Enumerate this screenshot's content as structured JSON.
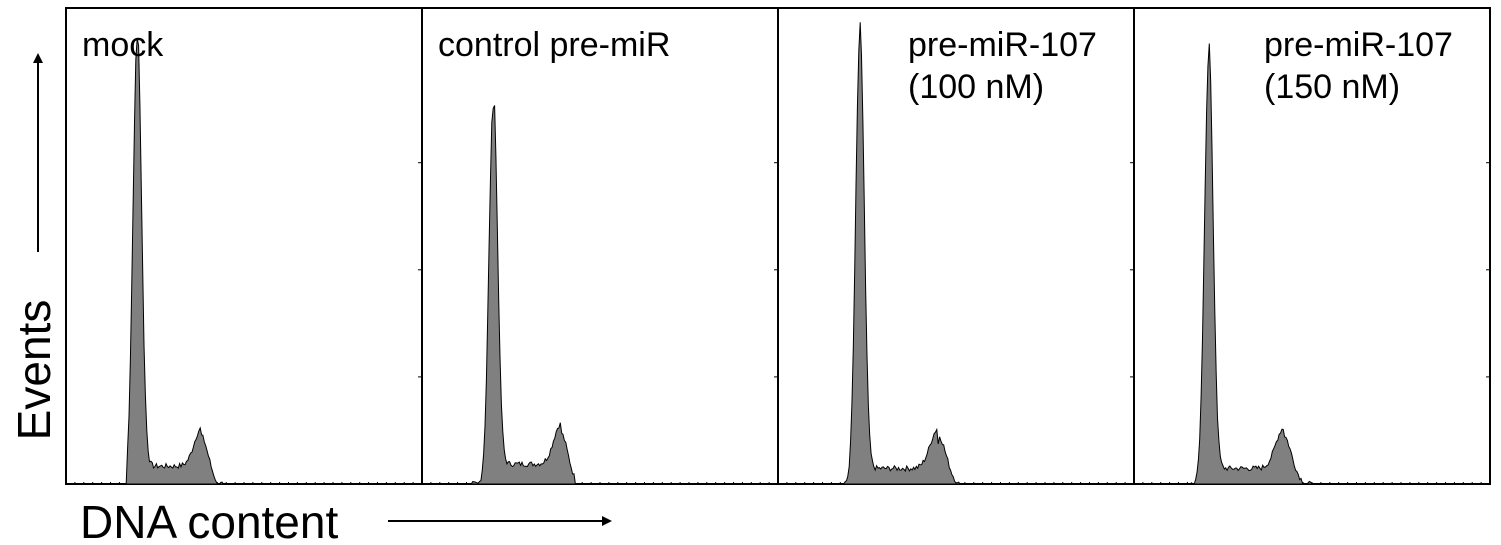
{
  "chart_data": {
    "type": "area",
    "ylabel": "Events",
    "xlabel": "DNA content",
    "panels": [
      {
        "label": [
          "mock"
        ],
        "series": {
          "g1_peak": {
            "x": 0.2,
            "y": 1.0,
            "width": 0.012
          },
          "g2_peak": {
            "x": 0.38,
            "y": 0.085,
            "width": 0.02
          },
          "s_phase_level": 0.04,
          "x_range": [
            0.17,
            0.42
          ]
        }
      },
      {
        "label": [
          "control pre-miR"
        ],
        "series": {
          "g1_peak": {
            "x": 0.2,
            "y": 0.85,
            "width": 0.012
          },
          "g2_peak": {
            "x": 0.39,
            "y": 0.09,
            "width": 0.02
          },
          "s_phase_level": 0.045,
          "x_range": [
            0.16,
            0.43
          ]
        }
      },
      {
        "label": [
          "pre-miR-107",
          "(100 nM)"
        ],
        "series": {
          "g1_peak": {
            "x": 0.23,
            "y": 1.0,
            "width": 0.012
          },
          "g2_peak": {
            "x": 0.45,
            "y": 0.09,
            "width": 0.022
          },
          "s_phase_level": 0.035,
          "x_range": [
            0.19,
            0.5
          ]
        }
      },
      {
        "label": [
          "pre-miR-107",
          "(150 nM)"
        ],
        "series": {
          "g1_peak": {
            "x": 0.21,
            "y": 0.96,
            "width": 0.012
          },
          "g2_peak": {
            "x": 0.42,
            "y": 0.09,
            "width": 0.022
          },
          "s_phase_level": 0.035,
          "x_range": [
            0.17,
            0.48
          ]
        }
      }
    ],
    "fill_color": "#808080",
    "outline_color": "#000000"
  }
}
